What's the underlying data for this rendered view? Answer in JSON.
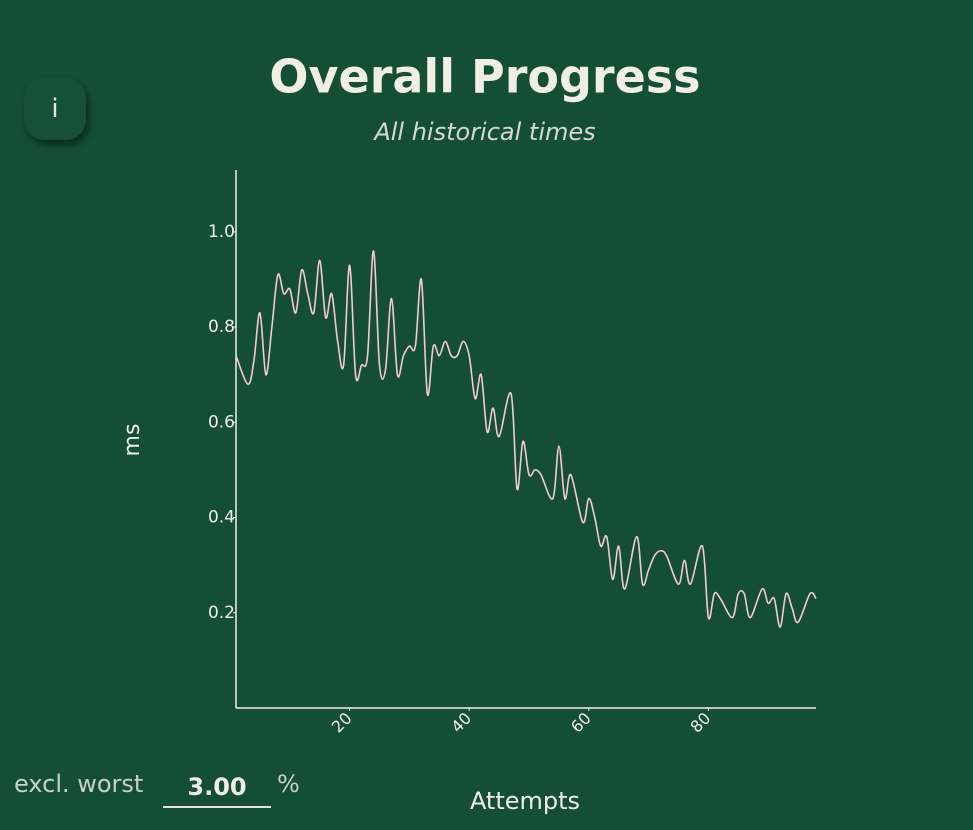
{
  "chart_data": {
    "type": "line",
    "title": "Overall Progress",
    "subtitle": "All historical times",
    "xlabel": "Attempts",
    "ylabel": "ms",
    "color": "#f6c9d2",
    "x": [
      1,
      3,
      4,
      5,
      6,
      7,
      8,
      9,
      10,
      11,
      12,
      13,
      14,
      15,
      16,
      17,
      18,
      19,
      20,
      21,
      22,
      23,
      24,
      25,
      26,
      27,
      28,
      29,
      30,
      31,
      32,
      33,
      34,
      35,
      36,
      37,
      38,
      39,
      40,
      41,
      42,
      43,
      44,
      45,
      47,
      48,
      49,
      50,
      51,
      52,
      54,
      55,
      56,
      57,
      59,
      60,
      61,
      62,
      63,
      64,
      65,
      66,
      68,
      69,
      70,
      71,
      72,
      73,
      75,
      76,
      77,
      79,
      80,
      81,
      82,
      84,
      85,
      86,
      87,
      89,
      90,
      91,
      92,
      93,
      94,
      95,
      97,
      98
    ],
    "values": [
      0.74,
      0.68,
      0.73,
      0.83,
      0.7,
      0.8,
      0.91,
      0.87,
      0.88,
      0.83,
      0.92,
      0.87,
      0.83,
      0.94,
      0.82,
      0.87,
      0.77,
      0.72,
      0.93,
      0.7,
      0.72,
      0.74,
      0.96,
      0.72,
      0.71,
      0.86,
      0.7,
      0.74,
      0.76,
      0.76,
      0.9,
      0.66,
      0.76,
      0.74,
      0.77,
      0.74,
      0.74,
      0.77,
      0.74,
      0.65,
      0.7,
      0.58,
      0.63,
      0.57,
      0.66,
      0.46,
      0.56,
      0.49,
      0.5,
      0.49,
      0.44,
      0.55,
      0.44,
      0.49,
      0.39,
      0.44,
      0.4,
      0.34,
      0.36,
      0.27,
      0.34,
      0.25,
      0.36,
      0.26,
      0.29,
      0.32,
      0.33,
      0.32,
      0.26,
      0.31,
      0.26,
      0.34,
      0.19,
      0.24,
      0.23,
      0.19,
      0.24,
      0.24,
      0.19,
      0.25,
      0.22,
      0.23,
      0.17,
      0.24,
      0.21,
      0.18,
      0.24,
      0.23
    ],
    "xlim": [
      1,
      98
    ],
    "xticks": [
      20,
      40,
      60,
      80
    ],
    "ylim": [
      0,
      1.13
    ],
    "yticks": [
      0.2,
      0.4,
      0.6,
      {
        "value": 0.8,
        "label": "0.8"
      },
      {
        "value": 1,
        "label": "1.0"
      }
    ]
  },
  "controls": {
    "info_button": "i",
    "exclude_label": "excl. worst",
    "exclude_value": "3.00",
    "exclude_unit": "%"
  }
}
